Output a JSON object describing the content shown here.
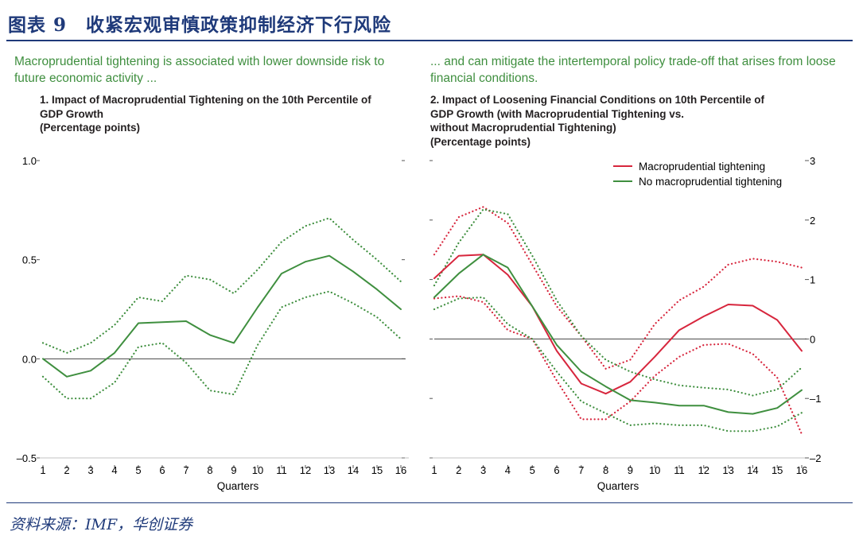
{
  "figure_title": "图表 9　收紧宏观审慎政策抑制经济下行风险",
  "source": "资料来源：IMF，华创证券",
  "chart_data": [
    {
      "type": "line",
      "lead_text": "Macroprudential tightening is associated with lower downside risk to future economic activity ...",
      "title": "1. Impact of Macroprudential Tightening on the 10th Percentile of\nGDP Growth\n(Percentage points)",
      "xlabel": "Quarters",
      "ylabel": "",
      "x": [
        1,
        2,
        3,
        4,
        5,
        6,
        7,
        8,
        9,
        10,
        11,
        12,
        13,
        14,
        15,
        16
      ],
      "xtick_labels": [
        "1",
        "2",
        "3",
        "4",
        "5",
        "6",
        "7",
        "8",
        "9",
        "10",
        "11",
        "12",
        "13",
        "14",
        "15",
        "16"
      ],
      "ylim": [
        -0.5,
        1.0
      ],
      "yticks": [
        -0.5,
        0.0,
        0.5,
        1.0
      ],
      "ytick_labels": [
        "–0.5",
        "0.0",
        "0.5",
        "1.0"
      ],
      "zero_line": 0,
      "series": [
        {
          "name": "Estimate",
          "color": "#3f8f3f",
          "style": "solid",
          "values": [
            0.0,
            -0.09,
            -0.06,
            0.03,
            0.18,
            0.185,
            0.19,
            0.12,
            0.08,
            0.26,
            0.43,
            0.49,
            0.52,
            0.44,
            0.35,
            0.25
          ]
        },
        {
          "name": "Upper band",
          "color": "#3f8f3f",
          "style": "dotted",
          "values": [
            0.08,
            0.03,
            0.08,
            0.17,
            0.31,
            0.29,
            0.42,
            0.4,
            0.33,
            0.45,
            0.59,
            0.67,
            0.71,
            0.6,
            0.5,
            0.39
          ]
        },
        {
          "name": "Lower band",
          "color": "#3f8f3f",
          "style": "dotted",
          "values": [
            -0.09,
            -0.2,
            -0.2,
            -0.12,
            0.06,
            0.08,
            -0.02,
            -0.16,
            -0.18,
            0.07,
            0.26,
            0.31,
            0.34,
            0.28,
            0.21,
            0.1
          ]
        }
      ]
    },
    {
      "type": "line",
      "lead_text": "... and can mitigate the intertemporal policy trade-off that arises from loose financial conditions.",
      "title": "2. Impact of Loosening Financial Conditions on 10th Percentile of\nGDP Growth (with Macroprudential Tightening vs.\nwithout Macroprudential Tightening)\n(Percentage points)",
      "xlabel": "Quarters",
      "ylabel": "",
      "x": [
        1,
        2,
        3,
        4,
        5,
        6,
        7,
        8,
        9,
        10,
        11,
        12,
        13,
        14,
        15,
        16
      ],
      "xtick_labels": [
        "1",
        "2",
        "3",
        "4",
        "5",
        "6",
        "7",
        "8",
        "9",
        "10",
        "11",
        "12",
        "13",
        "14",
        "15",
        "16"
      ],
      "ylim": [
        -2,
        3
      ],
      "yticks": [
        -2,
        -1,
        0,
        1,
        2,
        3
      ],
      "ytick_labels": [
        "–2",
        "–1",
        "0",
        "1",
        "2",
        "3"
      ],
      "zero_line": 0,
      "legend": {
        "position": "top-right",
        "entries": [
          {
            "label": "Macroprudential tightening",
            "color": "#d7263d"
          },
          {
            "label": "No macroprudential tightening",
            "color": "#3f8f3f"
          }
        ]
      },
      "series": [
        {
          "name": "Macroprudential tightening",
          "color": "#d7263d",
          "style": "solid",
          "values": [
            1.02,
            1.4,
            1.42,
            1.08,
            0.55,
            -0.2,
            -0.75,
            -0.92,
            -0.72,
            -0.3,
            0.15,
            0.38,
            0.58,
            0.56,
            0.32,
            -0.2
          ]
        },
        {
          "name": "Macroprudential tightening upper band",
          "color": "#d7263d",
          "style": "dotted",
          "values": [
            1.42,
            2.05,
            2.22,
            1.95,
            1.25,
            0.55,
            0.05,
            -0.5,
            -0.35,
            0.25,
            0.65,
            0.88,
            1.25,
            1.35,
            1.3,
            1.2
          ]
        },
        {
          "name": "Macroprudential tightening lower band",
          "color": "#d7263d",
          "style": "dotted",
          "values": [
            0.68,
            0.72,
            0.62,
            0.15,
            0.0,
            -0.7,
            -1.35,
            -1.35,
            -1.05,
            -0.62,
            -0.3,
            -0.1,
            -0.08,
            -0.25,
            -0.65,
            -1.6
          ]
        },
        {
          "name": "No macroprudential tightening",
          "color": "#3f8f3f",
          "style": "solid",
          "values": [
            0.7,
            1.1,
            1.42,
            1.2,
            0.55,
            -0.1,
            -0.55,
            -0.8,
            -1.03,
            -1.07,
            -1.12,
            -1.12,
            -1.23,
            -1.26,
            -1.16,
            -0.86
          ]
        },
        {
          "name": "No macroprudential tightening upper band",
          "color": "#3f8f3f",
          "style": "dotted",
          "values": [
            0.9,
            1.62,
            2.18,
            2.1,
            1.4,
            0.65,
            0.05,
            -0.35,
            -0.55,
            -0.68,
            -0.78,
            -0.82,
            -0.85,
            -0.95,
            -0.85,
            -0.48
          ]
        },
        {
          "name": "No macroprudential tightening lower band",
          "color": "#3f8f3f",
          "style": "dotted",
          "values": [
            0.5,
            0.68,
            0.7,
            0.25,
            0.0,
            -0.55,
            -1.05,
            -1.25,
            -1.45,
            -1.42,
            -1.45,
            -1.45,
            -1.55,
            -1.55,
            -1.47,
            -1.24
          ]
        }
      ]
    }
  ]
}
